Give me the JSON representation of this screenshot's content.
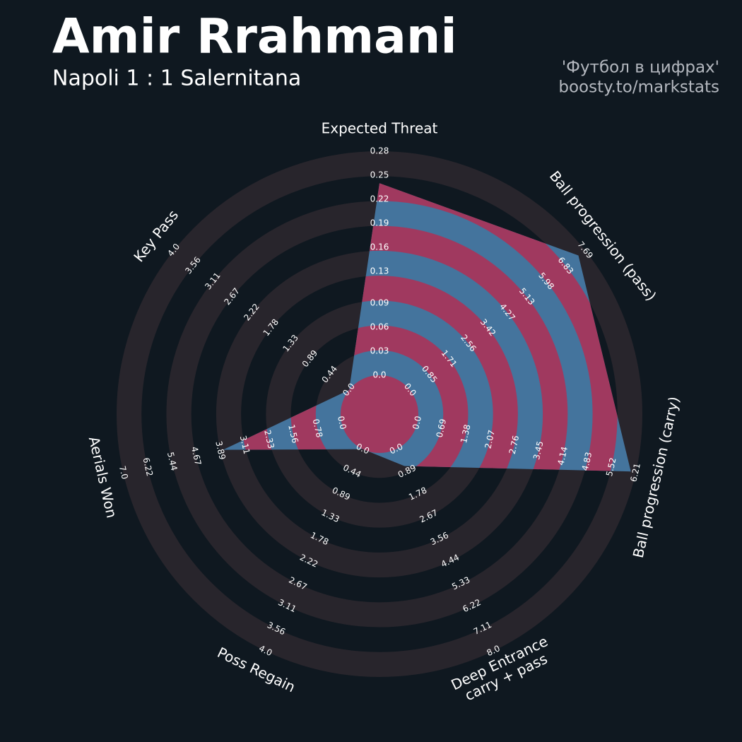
{
  "chart_data": {
    "type": "radar",
    "title": "Amir Rrahmani",
    "subtitle": "Napoli 1 : 1 Salernitana",
    "credit": [
      "'Футбол в цифрах'",
      "boosty.to/markstats"
    ],
    "color": "#44749d",
    "alt_color": "#a0395f",
    "ring_color": "#28252c",
    "categories": [
      "Expected Threat",
      "Ball progression (pass)",
      "Ball progression (carry)",
      "Deep Entrance\ncarry + pass",
      "Poss Regain",
      "Aerials Won",
      "Key Pass"
    ],
    "values": [
      0.24,
      7.4,
      6.07,
      0.67,
      0.0,
      3.8,
      0.0
    ],
    "axes": [
      {
        "lim": [
          0,
          0.28
        ],
        "ticks": [
          {
            "value": 0,
            "label": "0.0"
          },
          0.03,
          0.06,
          0.09,
          0.13,
          0.16,
          0.19,
          0.22,
          0.25,
          0.28
        ]
      },
      {
        "lim": [
          0,
          7.69
        ],
        "ticks": [
          {
            "value": 0,
            "label": "0.0"
          },
          0.85,
          1.71,
          2.56,
          3.42,
          4.27,
          5.13,
          5.98,
          6.83,
          7.69
        ]
      },
      {
        "lim": [
          0,
          6.21
        ],
        "ticks": [
          {
            "value": 0,
            "label": "0.0"
          },
          0.69,
          1.38,
          2.07,
          2.76,
          3.45,
          4.14,
          4.83,
          5.52,
          6.21
        ]
      },
      {
        "lim": [
          0,
          8
        ],
        "ticks": [
          {
            "value": 0,
            "label": "0.0"
          },
          0.89,
          1.78,
          2.67,
          3.56,
          4.44,
          5.33,
          6.22,
          7.11,
          {
            "value": 8,
            "label": "8.0"
          }
        ]
      },
      {
        "lim": [
          0,
          4
        ],
        "ticks": [
          {
            "value": 0,
            "label": "0.0"
          },
          0.44,
          0.89,
          1.33,
          1.78,
          2.22,
          2.67,
          3.11,
          3.56,
          {
            "value": 4,
            "label": "4.0"
          }
        ]
      },
      {
        "lim": [
          0,
          7
        ],
        "ticks": [
          {
            "value": 0,
            "label": "0.0"
          },
          0.78,
          1.56,
          2.33,
          3.11,
          3.89,
          4.67,
          5.44,
          6.22,
          {
            "value": 7,
            "label": "7.0"
          }
        ]
      },
      {
        "lim": [
          0,
          4
        ],
        "ticks": [
          {
            "value": 0,
            "label": "0.0"
          },
          0.44,
          0.89,
          1.33,
          1.78,
          2.22,
          2.67,
          3.11,
          3.56,
          {
            "value": 4,
            "label": "4.0"
          }
        ]
      }
    ]
  }
}
